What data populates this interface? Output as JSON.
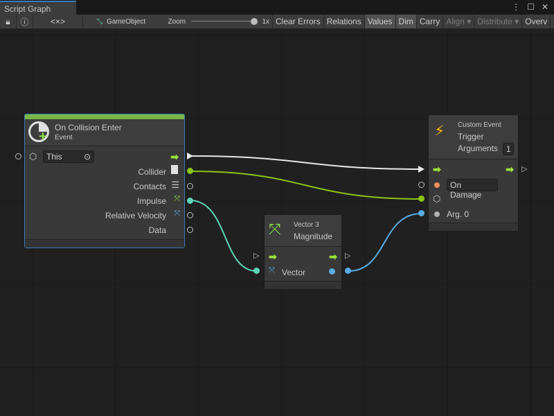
{
  "window": {
    "tab_title": "Script Graph",
    "menu_icon": "kebab-icon",
    "maximize_icon": "maximize-icon",
    "close_icon": "close-icon"
  },
  "toolbar": {
    "lock_icon": "lock-icon",
    "info_icon": "info-icon",
    "code_label": "<×>",
    "target_label": "GameObject",
    "zoom_label": "Zoom",
    "zoom_value": "1x",
    "zoom_level": 1.0,
    "buttons": [
      {
        "label": "Clear Errors",
        "state": "normal"
      },
      {
        "label": "Relations",
        "state": "normal"
      },
      {
        "label": "Values",
        "state": "on"
      },
      {
        "label": "Dim",
        "state": "on"
      },
      {
        "label": "Carry",
        "state": "normal"
      },
      {
        "label": "Align ▾",
        "state": "disabled"
      },
      {
        "label": "Distribute ▾",
        "state": "disabled"
      },
      {
        "label": "Overv",
        "state": "normal"
      }
    ]
  },
  "nodes": {
    "collision": {
      "title": "On Collision Enter",
      "subtitle": "Event",
      "accent": "#7ab648",
      "target_value": "This",
      "outputs": [
        "Collider",
        "Contacts",
        "Impulse",
        "Relative Velocity",
        "Data"
      ]
    },
    "trigger": {
      "category": "Custom Event",
      "title": "Trigger",
      "args_label": "Arguments",
      "args_value": "1",
      "name_value": "On Damage",
      "arg0": "Arg. 0"
    },
    "magnitude": {
      "category": "Vector 3",
      "title": "Magnitude",
      "input": "Vector"
    }
  },
  "colors": {
    "flow": "#9be03a",
    "collider": "#8cc414",
    "vector": "#5ed6b6",
    "float": "#5aaee6",
    "string": "#f0905a"
  }
}
